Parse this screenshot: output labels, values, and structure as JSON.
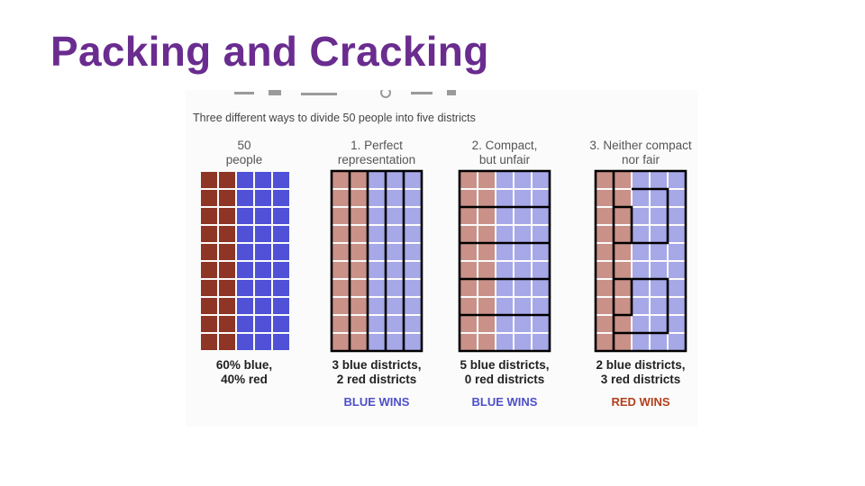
{
  "slide": {
    "title": "Packing and Cracking"
  },
  "figure": {
    "subtitle": "Three different ways to divide 50 people into five districts",
    "colors": {
      "red_solid": "#8e3526",
      "blue_solid": "#5051d7",
      "red_light": "#c99188",
      "blue_light": "#a7a8e8",
      "outcome_blue": "#4d4fc8",
      "outcome_red": "#b2401f"
    },
    "panels": [
      {
        "heading": [
          "50",
          "people"
        ],
        "caption": [
          "60% blue,",
          "40% red"
        ],
        "outcome": "",
        "outcome_color": "",
        "style": "solid"
      },
      {
        "heading": [
          "1. Perfect",
          "representation"
        ],
        "caption": [
          "3 blue districts,",
          "2 red districts"
        ],
        "outcome": "BLUE WINS",
        "outcome_color": "blue",
        "style": "light"
      },
      {
        "heading": [
          "2. Compact,",
          "but unfair"
        ],
        "caption": [
          "5 blue districts,",
          "0 red districts"
        ],
        "outcome": "BLUE WINS",
        "outcome_color": "blue",
        "style": "light"
      },
      {
        "heading": [
          "3. Neither compact",
          "nor fair"
        ],
        "caption": [
          "2 blue districts,",
          "3 red districts"
        ],
        "outcome": "RED WINS",
        "outcome_color": "red",
        "style": "light"
      }
    ]
  }
}
